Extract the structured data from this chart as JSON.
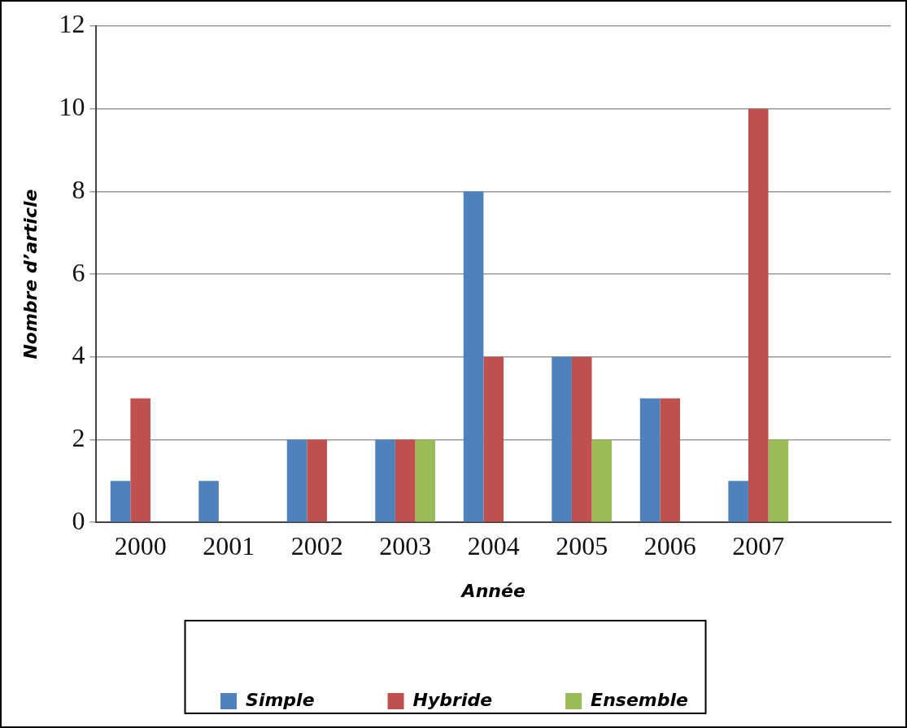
{
  "chart_data": {
    "type": "bar",
    "xlabel": "Année",
    "ylabel": "Nombre d’article",
    "categories": [
      "2000",
      "2001",
      "2002",
      "2003",
      "2004",
      "2005",
      "2006",
      "2007",
      null
    ],
    "series": [
      {
        "name": "Simple",
        "color": "#4f81bd",
        "values": [
          1,
          1,
          2,
          2,
          8,
          4,
          3,
          1,
          null
        ]
      },
      {
        "name": "Hybride",
        "color": "#c0504d",
        "values": [
          3,
          0,
          2,
          2,
          4,
          4,
          3,
          10,
          null
        ]
      },
      {
        "name": "Ensemble",
        "color": "#9bbb59",
        "values": [
          0,
          0,
          0,
          2,
          0,
          2,
          0,
          2,
          null
        ]
      }
    ],
    "ylim": [
      0,
      12
    ],
    "yticks": [
      0,
      2,
      4,
      6,
      8,
      10,
      12
    ],
    "grid": "y",
    "legend": "bottom"
  }
}
